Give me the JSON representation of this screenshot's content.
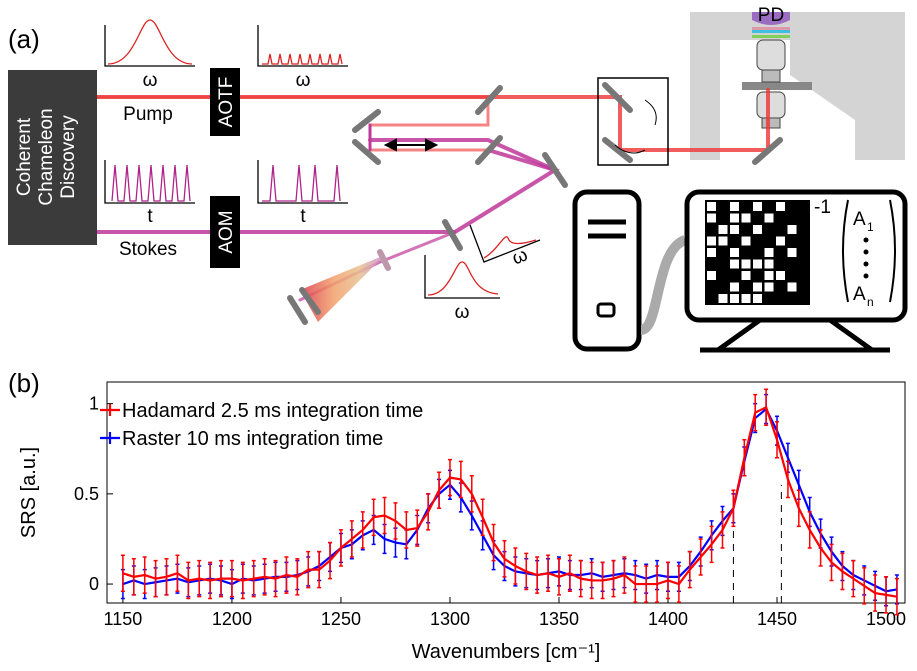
{
  "panel_a": {
    "label": "(a)",
    "laser_lines": [
      "Coherent",
      "Chameleon",
      "Discovery"
    ],
    "pump": "Pump",
    "stokes": "Stokes",
    "aotf": "AOTF",
    "aom": "AOM",
    "inset_axis_labels": [
      "ω",
      "ω",
      "t",
      "t",
      "ω",
      "ω"
    ],
    "detector": "PD",
    "inverse": "-1",
    "vector": {
      "top": "A",
      "top_sub": "1",
      "bottom": "A",
      "bottom_sub": "n"
    }
  },
  "chart_data": {
    "type": "line",
    "panel_label": "(b)",
    "x_label": "Wavenumbers [cm⁻¹]",
    "y_label": "SRS [a.u.]",
    "xlim": [
      1142.7,
      1508.7
    ],
    "ylim": [
      -0.105,
      1.12
    ],
    "xticks": [
      1150,
      1200,
      1250,
      1300,
      1350,
      1400,
      1450,
      1500
    ],
    "yticks": [
      0,
      0.5,
      1
    ],
    "legend": "upper left",
    "x": [
      1150,
      1155,
      1160,
      1165,
      1170,
      1175,
      1180,
      1185,
      1190,
      1195,
      1200,
      1205,
      1210,
      1215,
      1220,
      1225,
      1230,
      1235,
      1240,
      1245,
      1250,
      1255,
      1260,
      1265,
      1270,
      1275,
      1280,
      1285,
      1290,
      1295,
      1300,
      1305,
      1310,
      1315,
      1320,
      1325,
      1330,
      1335,
      1340,
      1345,
      1350,
      1355,
      1360,
      1365,
      1370,
      1375,
      1380,
      1385,
      1390,
      1395,
      1400,
      1405,
      1410,
      1415,
      1420,
      1425,
      1430,
      1435,
      1440,
      1445,
      1450,
      1455,
      1460,
      1465,
      1470,
      1475,
      1480,
      1485,
      1490,
      1495,
      1500,
      1505
    ],
    "series": [
      {
        "name": "Raster 10 ms integration time",
        "color": "#0000ff",
        "error": 0.08,
        "values": [
          0.0,
          0.02,
          0.0,
          0.01,
          0.02,
          0.03,
          0.01,
          0.02,
          0.03,
          0.02,
          0.0,
          0.03,
          0.02,
          0.03,
          0.04,
          0.04,
          0.05,
          0.07,
          0.1,
          0.15,
          0.2,
          0.22,
          0.27,
          0.3,
          0.25,
          0.23,
          0.22,
          0.3,
          0.42,
          0.5,
          0.55,
          0.48,
          0.38,
          0.27,
          0.16,
          0.1,
          0.07,
          0.06,
          0.05,
          0.06,
          0.07,
          0.05,
          0.05,
          0.06,
          0.04,
          0.05,
          0.06,
          0.05,
          0.03,
          0.05,
          0.04,
          0.04,
          0.1,
          0.18,
          0.27,
          0.35,
          0.42,
          0.68,
          0.92,
          0.97,
          0.85,
          0.7,
          0.55,
          0.4,
          0.28,
          0.18,
          0.1,
          0.05,
          0.02,
          -0.01,
          -0.04,
          -0.03
        ]
      },
      {
        "name": "Hadamard 2.5 ms integration time",
        "color": "#ff0000",
        "error": 0.1,
        "values": [
          0.06,
          0.04,
          0.05,
          0.03,
          0.04,
          0.06,
          0.02,
          0.03,
          0.02,
          0.03,
          0.03,
          0.02,
          0.03,
          0.04,
          0.03,
          0.05,
          0.04,
          0.08,
          0.08,
          0.13,
          0.2,
          0.25,
          0.3,
          0.37,
          0.38,
          0.35,
          0.3,
          0.31,
          0.4,
          0.52,
          0.59,
          0.58,
          0.5,
          0.37,
          0.23,
          0.14,
          0.1,
          0.07,
          0.05,
          0.06,
          0.04,
          0.06,
          0.03,
          0.02,
          0.02,
          0.03,
          0.05,
          0.0,
          0.0,
          0.0,
          0.02,
          0.0,
          0.08,
          0.15,
          0.22,
          0.3,
          0.42,
          0.7,
          0.95,
          0.98,
          0.8,
          0.58,
          0.42,
          0.3,
          0.2,
          0.12,
          0.07,
          0.03,
          -0.01,
          -0.05,
          -0.06,
          -0.07
        ]
      }
    ],
    "reference_lines": [
      {
        "x": 1430,
        "ytop": 0.45
      },
      {
        "x": 1452,
        "ytop": 0.55
      }
    ]
  }
}
